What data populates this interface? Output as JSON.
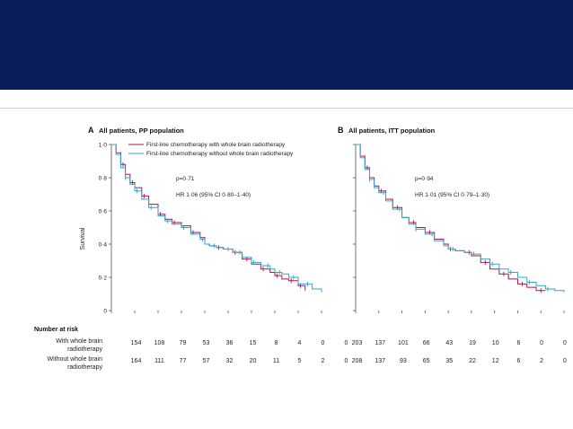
{
  "colors": {
    "header_band": "#0b1c5b",
    "with_wbrt": "#a8164a",
    "without_wbrt": "#2fa6c9",
    "axis": "#555555"
  },
  "chart_data": [
    {
      "type": "line",
      "panel_label": "A",
      "title": "All patients, PP population",
      "ylabel": "Survival",
      "ylim": [
        0,
        1.0
      ],
      "y_ticks": [
        "0",
        "0·2",
        "0·4",
        "0·6",
        "0·8",
        "1·0"
      ],
      "grid": false,
      "legend_position": "top",
      "annotations": [
        "p=0·71",
        "HR 1·06 (95% CI 0·80–1·40)"
      ],
      "x_points": 10,
      "series": [
        {
          "name": "First-line chemotherapy with whole brain radiotherapy",
          "color_key": "with_wbrt",
          "x": [
            0,
            0.2,
            0.4,
            0.6,
            0.8,
            1.0,
            1.3,
            1.6,
            2.0,
            2.3,
            2.6,
            3.0,
            3.4,
            3.8,
            4.0,
            4.2,
            4.5,
            4.8,
            5.2,
            5.6,
            6.0,
            6.4,
            6.8,
            7.0,
            7.3,
            7.6,
            8.0,
            8.3
          ],
          "y": [
            1.0,
            0.95,
            0.88,
            0.82,
            0.77,
            0.74,
            0.69,
            0.64,
            0.58,
            0.55,
            0.53,
            0.51,
            0.47,
            0.44,
            0.4,
            0.39,
            0.38,
            0.37,
            0.35,
            0.31,
            0.28,
            0.25,
            0.23,
            0.21,
            0.19,
            0.18,
            0.15,
            0.12
          ],
          "censored_x": [
            0.5,
            0.9,
            1.4,
            2.1,
            2.7,
            3.5,
            4.6,
            5.3,
            5.8,
            6.5,
            7.1,
            7.7,
            8.1
          ]
        },
        {
          "name": "First-line chemotherapy without whole brain radiotherapy",
          "color_key": "without_wbrt",
          "x": [
            0,
            0.2,
            0.4,
            0.6,
            0.8,
            1.0,
            1.3,
            1.6,
            2.0,
            2.3,
            2.6,
            3.0,
            3.4,
            3.8,
            4.0,
            4.2,
            4.5,
            4.8,
            5.2,
            5.6,
            6.0,
            6.4,
            6.8,
            7.0,
            7.3,
            7.6,
            8.0,
            8.6,
            9.0
          ],
          "y": [
            1.0,
            0.94,
            0.86,
            0.8,
            0.76,
            0.72,
            0.67,
            0.62,
            0.57,
            0.54,
            0.52,
            0.5,
            0.46,
            0.43,
            0.4,
            0.39,
            0.38,
            0.37,
            0.35,
            0.32,
            0.29,
            0.27,
            0.25,
            0.23,
            0.22,
            0.2,
            0.16,
            0.13,
            0.11
          ],
          "censored_x": [
            0.6,
            1.1,
            1.7,
            2.4,
            3.1,
            3.9,
            4.4,
            5.0,
            5.5,
            6.1,
            6.7,
            7.2,
            7.8,
            8.4
          ]
        }
      ],
      "risk_table": {
        "rows": [
          {
            "label_lines": [
              "With whole brain",
              "radiotherapy"
            ],
            "values": [
              "154",
              "108",
              "79",
              "53",
              "36",
              "15",
              "8",
              "4",
              "0",
              "0"
            ]
          },
          {
            "label_lines": [
              "Without whole brain",
              "radiotherapy"
            ],
            "values": [
              "164",
              "111",
              "77",
              "57",
              "32",
              "20",
              "11",
              "5",
              "2",
              "0"
            ]
          }
        ]
      }
    },
    {
      "type": "line",
      "panel_label": "B",
      "title": "All patients, ITT population",
      "ylim": [
        0,
        1.0
      ],
      "grid": false,
      "annotations": [
        "p=0·94",
        "HR 1·01 (95% CI 0·79–1·30)"
      ],
      "x_points": 10,
      "series": [
        {
          "name": "First-line chemotherapy with whole brain radiotherapy",
          "color_key": "with_wbrt",
          "x": [
            0,
            0.2,
            0.4,
            0.6,
            0.8,
            1.0,
            1.3,
            1.6,
            2.0,
            2.3,
            2.6,
            3.0,
            3.4,
            3.8,
            4.0,
            4.3,
            4.7,
            5.0,
            5.4,
            5.8,
            6.2,
            6.6,
            7.0,
            7.4,
            7.8,
            8.2
          ],
          "y": [
            1.0,
            0.93,
            0.86,
            0.8,
            0.75,
            0.72,
            0.67,
            0.62,
            0.56,
            0.53,
            0.5,
            0.47,
            0.43,
            0.4,
            0.37,
            0.36,
            0.35,
            0.33,
            0.29,
            0.25,
            0.22,
            0.19,
            0.16,
            0.14,
            0.12,
            0.12
          ],
          "censored_x": [
            0.5,
            1.1,
            1.8,
            2.5,
            3.2,
            4.1,
            4.9,
            5.6,
            6.4,
            7.2,
            8.0
          ]
        },
        {
          "name": "First-line chemotherapy without whole brain radiotherapy",
          "color_key": "without_wbrt",
          "x": [
            0,
            0.2,
            0.4,
            0.6,
            0.8,
            1.0,
            1.3,
            1.6,
            2.0,
            2.3,
            2.6,
            3.0,
            3.4,
            3.8,
            4.0,
            4.3,
            4.7,
            5.0,
            5.4,
            5.8,
            6.2,
            6.6,
            7.0,
            7.4,
            7.8,
            8.2,
            8.6,
            9.0
          ],
          "y": [
            1.0,
            0.92,
            0.85,
            0.79,
            0.74,
            0.71,
            0.66,
            0.61,
            0.56,
            0.52,
            0.49,
            0.46,
            0.42,
            0.39,
            0.37,
            0.36,
            0.35,
            0.34,
            0.31,
            0.28,
            0.25,
            0.23,
            0.2,
            0.17,
            0.15,
            0.13,
            0.12,
            0.11
          ],
          "censored_x": [
            0.6,
            1.2,
            1.9,
            2.6,
            3.3,
            4.2,
            5.1,
            5.9,
            6.7,
            7.5,
            8.3
          ]
        }
      ],
      "risk_table": {
        "rows": [
          {
            "values": [
              "203",
              "137",
              "101",
              "66",
              "43",
              "19",
              "10",
              "6",
              "0",
              "0"
            ]
          },
          {
            "values": [
              "208",
              "137",
              "93",
              "65",
              "35",
              "22",
              "12",
              "6",
              "2",
              "0"
            ]
          }
        ]
      }
    }
  ],
  "risk_table_header": "Number at risk"
}
